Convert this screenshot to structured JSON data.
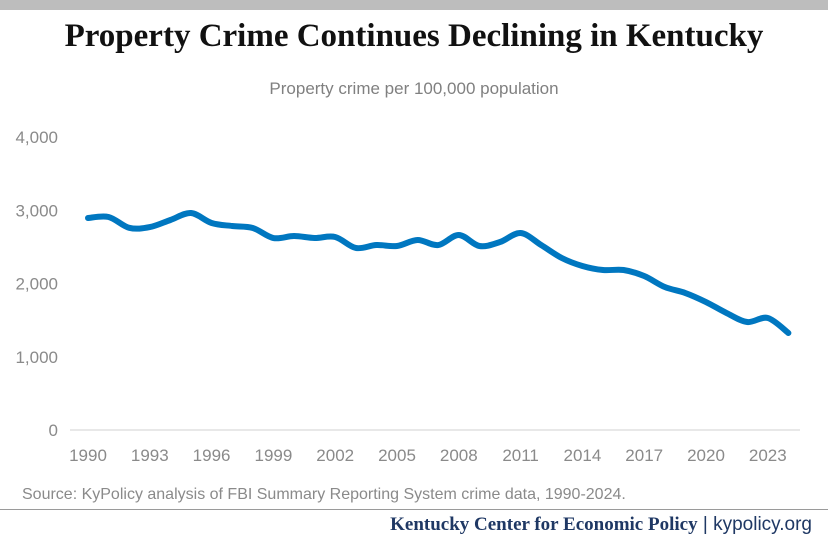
{
  "chart_data": {
    "type": "line",
    "title": "Property Crime Continues Declining in Kentucky",
    "subtitle": "Property crime per 100,000 population",
    "xlabel": "",
    "ylabel": "",
    "ylim": [
      0,
      4000
    ],
    "xlim": [
      1990,
      2024
    ],
    "y_ticks": [
      "0",
      "1,000",
      "2,000",
      "3,000",
      "4,000"
    ],
    "y_tick_values": [
      0,
      1000,
      2000,
      3000,
      4000
    ],
    "x_ticks": [
      "1990",
      "1993",
      "1996",
      "1999",
      "2002",
      "2005",
      "2008",
      "2011",
      "2014",
      "2017",
      "2020",
      "2023"
    ],
    "x_tick_values": [
      1990,
      1993,
      1996,
      1999,
      2002,
      2005,
      2008,
      2011,
      2014,
      2017,
      2020,
      2023
    ],
    "grid": false,
    "line_color": "#0077c0",
    "x": [
      1990,
      1991,
      1992,
      1993,
      1994,
      1995,
      1996,
      1997,
      1998,
      1999,
      2000,
      2001,
      2002,
      2003,
      2004,
      2005,
      2006,
      2007,
      2008,
      2009,
      2010,
      2011,
      2012,
      2013,
      2014,
      2015,
      2016,
      2017,
      2018,
      2019,
      2020,
      2021,
      2022,
      2023,
      2024
    ],
    "values": [
      2894,
      2908,
      2760,
      2770,
      2867,
      2962,
      2826,
      2785,
      2758,
      2621,
      2648,
      2621,
      2635,
      2485,
      2525,
      2512,
      2594,
      2525,
      2662,
      2512,
      2566,
      2689,
      2525,
      2348,
      2239,
      2184,
      2184,
      2102,
      1952,
      1870,
      1747,
      1597,
      1474,
      1529,
      1324
    ]
  },
  "source": "Source: KyPolicy analysis of FBI Summary Reporting System crime data, 1990-2024.",
  "footer": {
    "org": "Kentucky Center for Economic Policy",
    "separator": "|",
    "url": "kypolicy.org"
  }
}
